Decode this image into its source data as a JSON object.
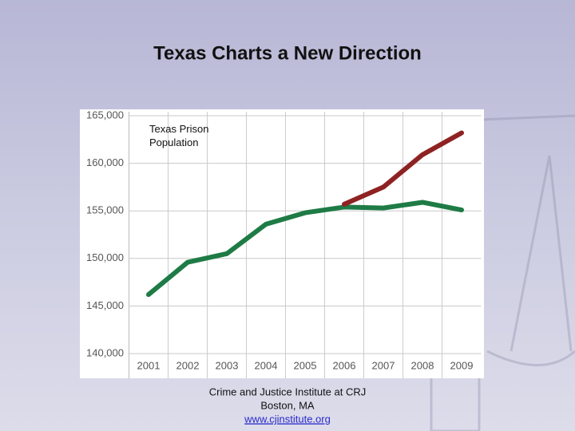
{
  "chart_data": {
    "type": "line",
    "title": "Texas Charts a New Direction",
    "annotation": "Texas Prison Population",
    "categories": [
      "2001",
      "2002",
      "2003",
      "2004",
      "2005",
      "2006",
      "2007",
      "2008",
      "2009"
    ],
    "series": [
      {
        "color": "#1e7b45",
        "values": [
          146200,
          149600,
          150500,
          153600,
          154800,
          155400,
          155300,
          155900,
          155100
        ]
      },
      {
        "color": "#8e2222",
        "values": [
          null,
          null,
          null,
          null,
          null,
          155700,
          157500,
          160900,
          163200
        ]
      }
    ],
    "ylim": [
      140000,
      165000
    ],
    "yticks": [
      {
        "value": 140000,
        "label": "140,000"
      },
      {
        "value": 145000,
        "label": "145,000"
      },
      {
        "value": 150000,
        "label": "150,000"
      },
      {
        "value": 155000,
        "label": "155,000"
      },
      {
        "value": 160000,
        "label": "160,000"
      },
      {
        "value": 165000,
        "label": "165,000"
      }
    ],
    "grid": true
  },
  "footer": {
    "organization": "Crime and Justice Institute at CRJ",
    "location": "Boston, MA",
    "url": "www.cjinstitute.org"
  }
}
